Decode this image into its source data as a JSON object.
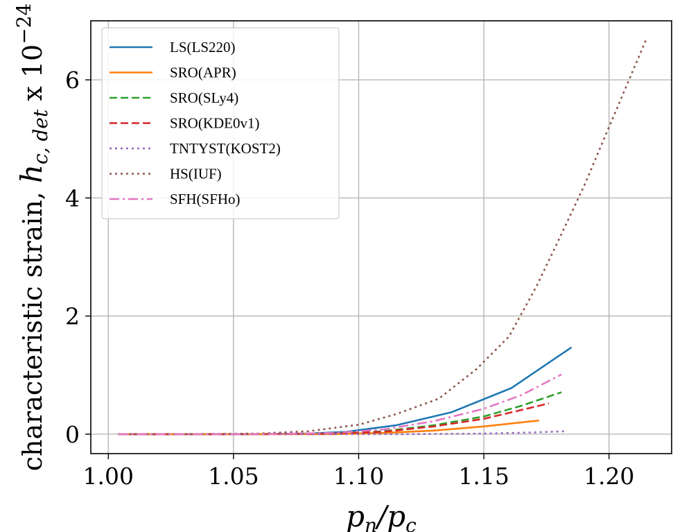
{
  "chart_data": {
    "type": "line",
    "xlabel": "p_n/p_c",
    "ylabel": "characteristic strain, h_{c, det} x 10^{-24}",
    "ylabel_parts": {
      "prefix": "characteristic strain, ",
      "symbol": "h",
      "subscript": "c, det",
      "times": " x 10",
      "exponent": "−24"
    },
    "xlabel_parts": {
      "p1": "p",
      "s1": "n",
      "slash": "/",
      "p2": "p",
      "s2": "c"
    },
    "xlim": [
      0.993,
      1.225
    ],
    "ylim": [
      -0.33,
      7.0
    ],
    "xticks": [
      1.0,
      1.05,
      1.1,
      1.15,
      1.2
    ],
    "xtick_labels": [
      "1.00",
      "1.05",
      "1.10",
      "1.15",
      "1.20"
    ],
    "yticks": [
      0,
      2,
      4,
      6
    ],
    "ytick_labels": [
      "0",
      "2",
      "4",
      "6"
    ],
    "grid": true,
    "legend_position": "upper-left",
    "series": [
      {
        "name": "LS(LS220)",
        "color": "#1f77b4",
        "style": "solid",
        "x": [
          1.004,
          1.02,
          1.04,
          1.06,
          1.08,
          1.095,
          1.115,
          1.137,
          1.161,
          1.185
        ],
        "y": [
          0.0,
          0.0,
          0.0,
          0.0,
          0.01,
          0.04,
          0.15,
          0.37,
          0.78,
          1.47
        ]
      },
      {
        "name": "SRO(APR)",
        "color": "#ff7f0e",
        "style": "solid",
        "x": [
          1.004,
          1.03,
          1.06,
          1.09,
          1.11,
          1.13,
          1.15,
          1.172
        ],
        "y": [
          0.0,
          0.0,
          0.0,
          0.0,
          0.02,
          0.06,
          0.13,
          0.23
        ]
      },
      {
        "name": "SRO(SLy4)",
        "color": "#2ca02c",
        "style": "dashed",
        "x": [
          1.004,
          1.03,
          1.06,
          1.09,
          1.11,
          1.13,
          1.15,
          1.165,
          1.181
        ],
        "y": [
          0.0,
          0.0,
          0.0,
          0.01,
          0.05,
          0.15,
          0.3,
          0.48,
          0.71
        ]
      },
      {
        "name": "SRO(KDE0v1)",
        "color": "#d62728",
        "style": "dashed",
        "x": [
          1.004,
          1.03,
          1.06,
          1.09,
          1.11,
          1.13,
          1.15,
          1.164,
          1.176
        ],
        "y": [
          0.0,
          0.0,
          0.0,
          0.01,
          0.04,
          0.13,
          0.26,
          0.4,
          0.52
        ]
      },
      {
        "name": "TNTYST(KOST2)",
        "color": "#9467bd",
        "style": "dotted",
        "x": [
          1.004,
          1.04,
          1.08,
          1.12,
          1.15,
          1.17,
          1.183
        ],
        "y": [
          0.0,
          0.0,
          0.0,
          0.0,
          0.01,
          0.03,
          0.05
        ]
      },
      {
        "name": "HS(IUF)",
        "color": "#8c564b",
        "style": "dotted",
        "x": [
          1.004,
          1.03,
          1.06,
          1.08,
          1.1,
          1.115,
          1.132,
          1.147,
          1.16,
          1.171,
          1.18,
          1.19,
          1.2,
          1.209,
          1.215
        ],
        "y": [
          0.0,
          0.0,
          0.01,
          0.05,
          0.16,
          0.34,
          0.6,
          1.1,
          1.65,
          2.5,
          3.3,
          4.2,
          5.2,
          6.1,
          6.7
        ]
      },
      {
        "name": "SFH(SFHo)",
        "color": "#e377c2",
        "style": "dashdot",
        "x": [
          1.004,
          1.03,
          1.06,
          1.09,
          1.11,
          1.13,
          1.15,
          1.165,
          1.181
        ],
        "y": [
          0.0,
          0.0,
          0.0,
          0.02,
          0.08,
          0.22,
          0.43,
          0.66,
          1.01
        ]
      }
    ]
  }
}
